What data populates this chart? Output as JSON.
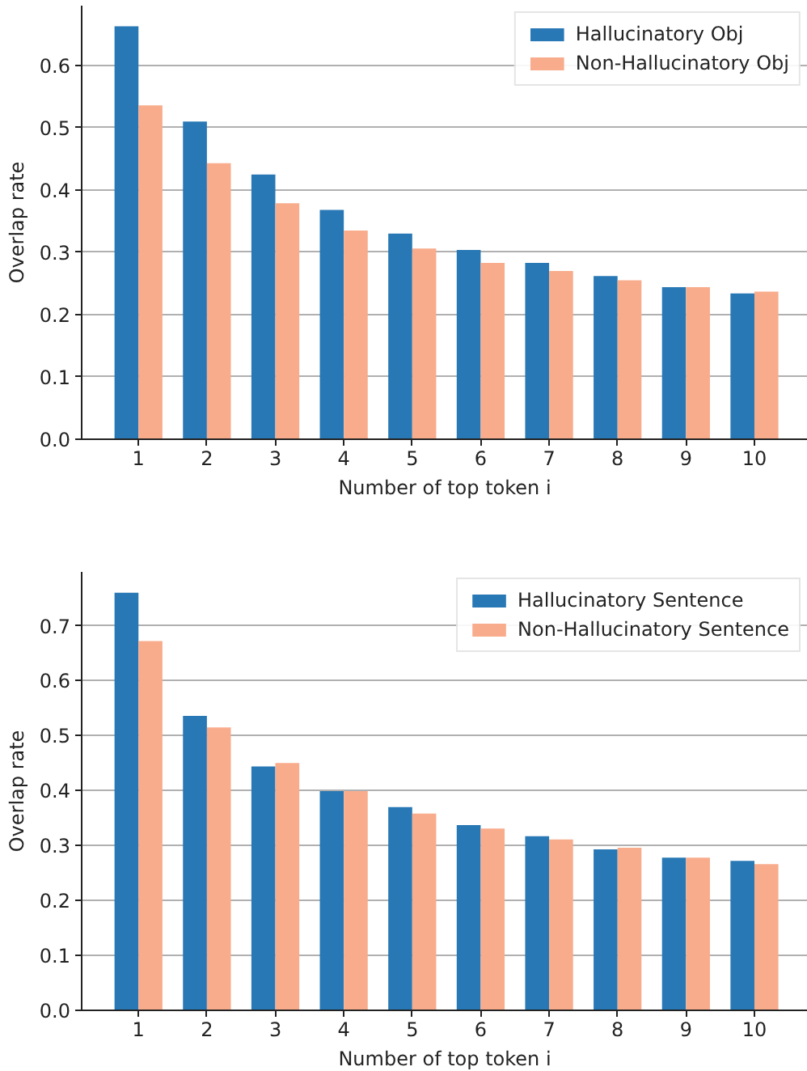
{
  "chart_data": [
    {
      "type": "bar",
      "xlabel": "Number of top token i",
      "ylabel": "Overlap rate",
      "categories": [
        "1",
        "2",
        "3",
        "4",
        "5",
        "6",
        "7",
        "8",
        "9",
        "10"
      ],
      "series": [
        {
          "name": "Hallucinatory Obj",
          "color": "#2878b5",
          "values": [
            0.663,
            0.51,
            0.425,
            0.368,
            0.33,
            0.304,
            0.283,
            0.262,
            0.244,
            0.234
          ]
        },
        {
          "name": "Non-Hallucinatory Obj",
          "color": "#f8ac8c",
          "values": [
            0.536,
            0.443,
            0.379,
            0.335,
            0.306,
            0.283,
            0.27,
            0.255,
            0.244,
            0.237
          ]
        }
      ],
      "ylim": [
        0,
        0.696
      ],
      "yticks": [
        {
          "value": 0,
          "label": "0.0"
        },
        0.1,
        0.2,
        0.3,
        0.4,
        0.5,
        0.6
      ],
      "grid": "y",
      "legend": "top right"
    },
    {
      "type": "bar",
      "xlabel": "Number of top token i",
      "ylabel": "Overlap rate",
      "categories": [
        "1",
        "2",
        "3",
        "4",
        "5",
        "6",
        "7",
        "8",
        "9",
        "10"
      ],
      "series": [
        {
          "name": "Hallucinatory Sentence",
          "color": "#2878b5",
          "values": [
            0.76,
            0.536,
            0.444,
            0.399,
            0.37,
            0.337,
            0.317,
            0.293,
            0.278,
            0.272
          ]
        },
        {
          "name": "Non-Hallucinatory Sentence",
          "color": "#f8ac8c",
          "values": [
            0.672,
            0.515,
            0.45,
            0.399,
            0.358,
            0.331,
            0.311,
            0.296,
            0.278,
            0.266
          ]
        }
      ],
      "ylim": [
        0,
        0.798
      ],
      "yticks": [
        {
          "value": 0,
          "label": "0.0"
        },
        0.1,
        0.2,
        0.3,
        0.4,
        0.5,
        0.6,
        0.7
      ],
      "grid": "y",
      "legend": "top right"
    }
  ]
}
